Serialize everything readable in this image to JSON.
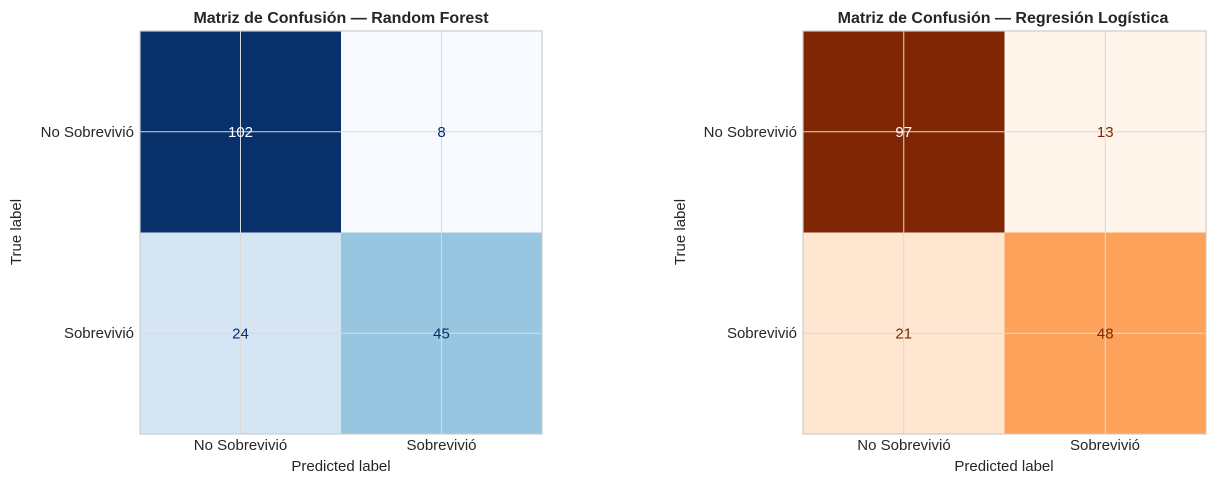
{
  "chart_data": [
    {
      "type": "heatmap",
      "title": "Matriz de Confusión — Random Forest",
      "xlabel": "Predicted label",
      "ylabel": "True label",
      "x_categories": [
        "No Sobrevivió",
        "Sobrevivió"
      ],
      "y_categories": [
        "No Sobrevivió",
        "Sobrevivió"
      ],
      "values": [
        [
          102,
          8
        ],
        [
          24,
          45
        ]
      ],
      "colormap": "Blues",
      "cell_colors": [
        [
          "#08306b",
          "#f7fbff"
        ],
        [
          "#d5e5f4",
          "#98c6e0"
        ]
      ],
      "text_colors": [
        [
          "#ffffff",
          "#08306b"
        ],
        [
          "#08306b",
          "#08306b"
        ]
      ],
      "grid": true
    },
    {
      "type": "heatmap",
      "title": "Matriz de Confusión — Regresión Logística",
      "xlabel": "Predicted label",
      "ylabel": "True label",
      "x_categories": [
        "No Sobrevivió",
        "Sobrevivió"
      ],
      "y_categories": [
        "No Sobrevivió",
        "Sobrevivió"
      ],
      "values": [
        [
          97,
          13
        ],
        [
          21,
          48
        ]
      ],
      "colormap": "Oranges",
      "cell_colors": [
        [
          "#7f2704",
          "#fff5eb"
        ],
        [
          "#fee6d1",
          "#fda25b"
        ]
      ],
      "text_colors": [
        [
          "#ffffff",
          "#7f2704"
        ],
        [
          "#7f2704",
          "#7f2704"
        ]
      ],
      "grid": true
    }
  ]
}
